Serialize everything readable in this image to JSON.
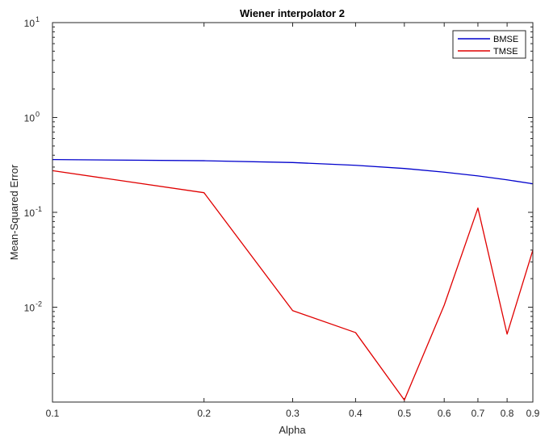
{
  "chart_data": {
    "type": "line",
    "title": "Wiener interpolator 2",
    "xlabel": "Alpha",
    "ylabel": "Mean-Squared Error",
    "xscale": "log",
    "yscale": "log",
    "xlim": [
      0.1,
      0.9
    ],
    "ylim": [
      0.001,
      10
    ],
    "grid": false,
    "legend_position": "top-right",
    "x_ticks": [
      {
        "value": 0.1,
        "label": "0.1"
      },
      {
        "value": 0.2,
        "label": "0.2"
      },
      {
        "value": 0.3,
        "label": "0.3"
      },
      {
        "value": 0.4,
        "label": "0.4"
      },
      {
        "value": 0.5,
        "label": "0.5"
      },
      {
        "value": 0.6,
        "label": "0.6"
      },
      {
        "value": 0.7,
        "label": "0.7"
      },
      {
        "value": 0.8,
        "label": "0.8"
      },
      {
        "value": 0.9,
        "label": "0.9"
      }
    ],
    "y_ticks": [
      {
        "value": 0.01,
        "base": "10",
        "exp": "-2"
      },
      {
        "value": 0.1,
        "base": "10",
        "exp": "-1"
      },
      {
        "value": 1,
        "base": "10",
        "exp": "0"
      },
      {
        "value": 10,
        "base": "10",
        "exp": "1"
      }
    ],
    "series": [
      {
        "name": "BMSE",
        "color": "#0000cc",
        "x": [
          0.1,
          0.2,
          0.3,
          0.4,
          0.5,
          0.6,
          0.7,
          0.8,
          0.9
        ],
        "y": [
          0.36,
          0.35,
          0.335,
          0.313,
          0.29,
          0.265,
          0.242,
          0.22,
          0.2
        ]
      },
      {
        "name": "TMSE",
        "color": "#e00000",
        "x": [
          0.1,
          0.2,
          0.3,
          0.4,
          0.5,
          0.6,
          0.7,
          0.8,
          0.9
        ],
        "y": [
          0.275,
          0.161,
          0.0092,
          0.0054,
          0.00105,
          0.0105,
          0.111,
          0.0052,
          0.04
        ]
      }
    ]
  }
}
